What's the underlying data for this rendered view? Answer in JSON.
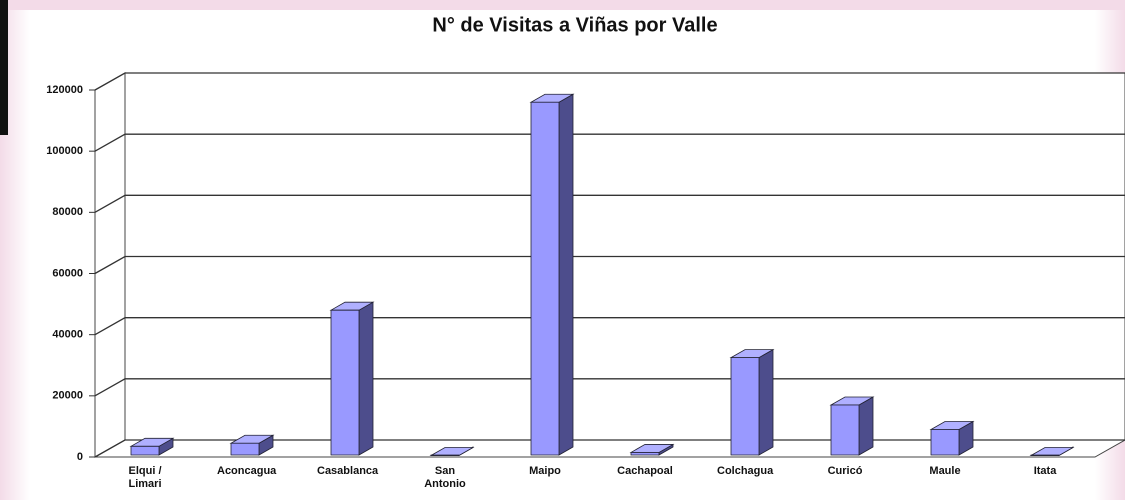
{
  "chart_data": {
    "type": "bar3d",
    "title": "N° de Visitas a Viñas por Valle",
    "categories": [
      "Elqui / Limari",
      "Aconcagua",
      "Casablanca",
      "San Antonio",
      "Maipo",
      "Cachapoal",
      "Colchagua",
      "Curicó",
      "Maule",
      "Itata"
    ],
    "values": [
      3500,
      4500,
      48000,
      500,
      116000,
      1500,
      32500,
      17000,
      9000,
      500
    ],
    "color": "#9999ff",
    "ylim": [
      0,
      120000
    ],
    "yticks": [
      0,
      20000,
      40000,
      60000,
      80000,
      100000,
      120000
    ],
    "grid": true
  }
}
